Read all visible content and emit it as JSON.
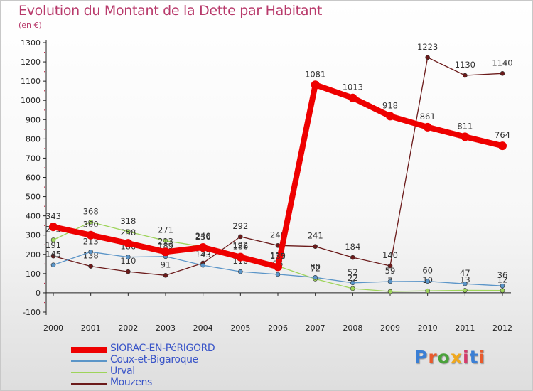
{
  "header": {
    "title": "Evolution du Montant de la Dette par Habitant",
    "subtitle": "(en €)"
  },
  "logo": {
    "text": "Proxiti",
    "colors": [
      "#3a7fd5",
      "#e85a2c",
      "#4aa23a",
      "#f0a81e",
      "#d53a6b",
      "#3a7fd5",
      "#e85a2c"
    ]
  },
  "chart_data": {
    "type": "line",
    "x": [
      "2000",
      "2001",
      "2002",
      "2003",
      "2004",
      "2005",
      "2006",
      "2007",
      "2008",
      "2009",
      "2010",
      "2011",
      "2012"
    ],
    "ylim": [
      -100,
      1300
    ],
    "yticks": [
      -100,
      0,
      100,
      200,
      300,
      400,
      500,
      600,
      700,
      800,
      900,
      1000,
      1100,
      1200,
      1300
    ],
    "grid": false,
    "legend_position": "bottom-left",
    "series": [
      {
        "name": "Mouzens",
        "color": "#6b1a1a",
        "width": 1.3,
        "values": [
          191,
          138,
          110,
          91,
          155,
          292,
          246,
          241,
          184,
          140,
          1223,
          1130,
          1140
        ],
        "labels": [
          "191",
          "138",
          "110",
          "91",
          "155",
          "292",
          "246",
          "241",
          "184",
          "140",
          "1223",
          "1130",
          "1140"
        ]
      },
      {
        "name": "Urval",
        "color": "#9ed45a",
        "width": 1.3,
        "values": [
          275,
          368,
          318,
          271,
          240,
          192,
          139,
          72,
          22,
          7,
          10,
          13,
          12
        ],
        "labels": [
          "275",
          "368",
          "318",
          "271",
          "240",
          "192",
          "139",
          "72",
          "22",
          "7",
          "10",
          "13",
          "12"
        ]
      },
      {
        "name": "Coux-et-Bigaroque",
        "color": "#5b95c8",
        "width": 1.3,
        "values": [
          145,
          213,
          186,
          189,
          143,
          110,
          96,
          80,
          52,
          59,
          60,
          47,
          36
        ],
        "labels": [
          "145",
          "213",
          "186",
          "189",
          "143",
          "110",
          "96",
          "80",
          "52",
          "59",
          "60",
          "47",
          "36"
        ]
      },
      {
        "name": "SIORAC-EN-PéRIGORD",
        "color": "#ee0000",
        "width": 8,
        "values": [
          343,
          300,
          258,
          213,
          236,
          186,
          135,
          1081,
          1013,
          918,
          861,
          811,
          764
        ],
        "labels": [
          "343",
          "300",
          "258",
          "213",
          "236",
          "186",
          "135",
          "1081",
          "1013",
          "918",
          "861",
          "811",
          "764"
        ]
      }
    ]
  },
  "legend": [
    {
      "label": "SIORAC-EN-PéRIGORD",
      "color": "#ee0000",
      "height": 8
    },
    {
      "label": "Coux-et-Bigaroque",
      "color": "#5b95c8",
      "height": 2
    },
    {
      "label": "Urval",
      "color": "#9ed45a",
      "height": 2
    },
    {
      "label": "Mouzens",
      "color": "#6b1a1a",
      "height": 2
    }
  ]
}
